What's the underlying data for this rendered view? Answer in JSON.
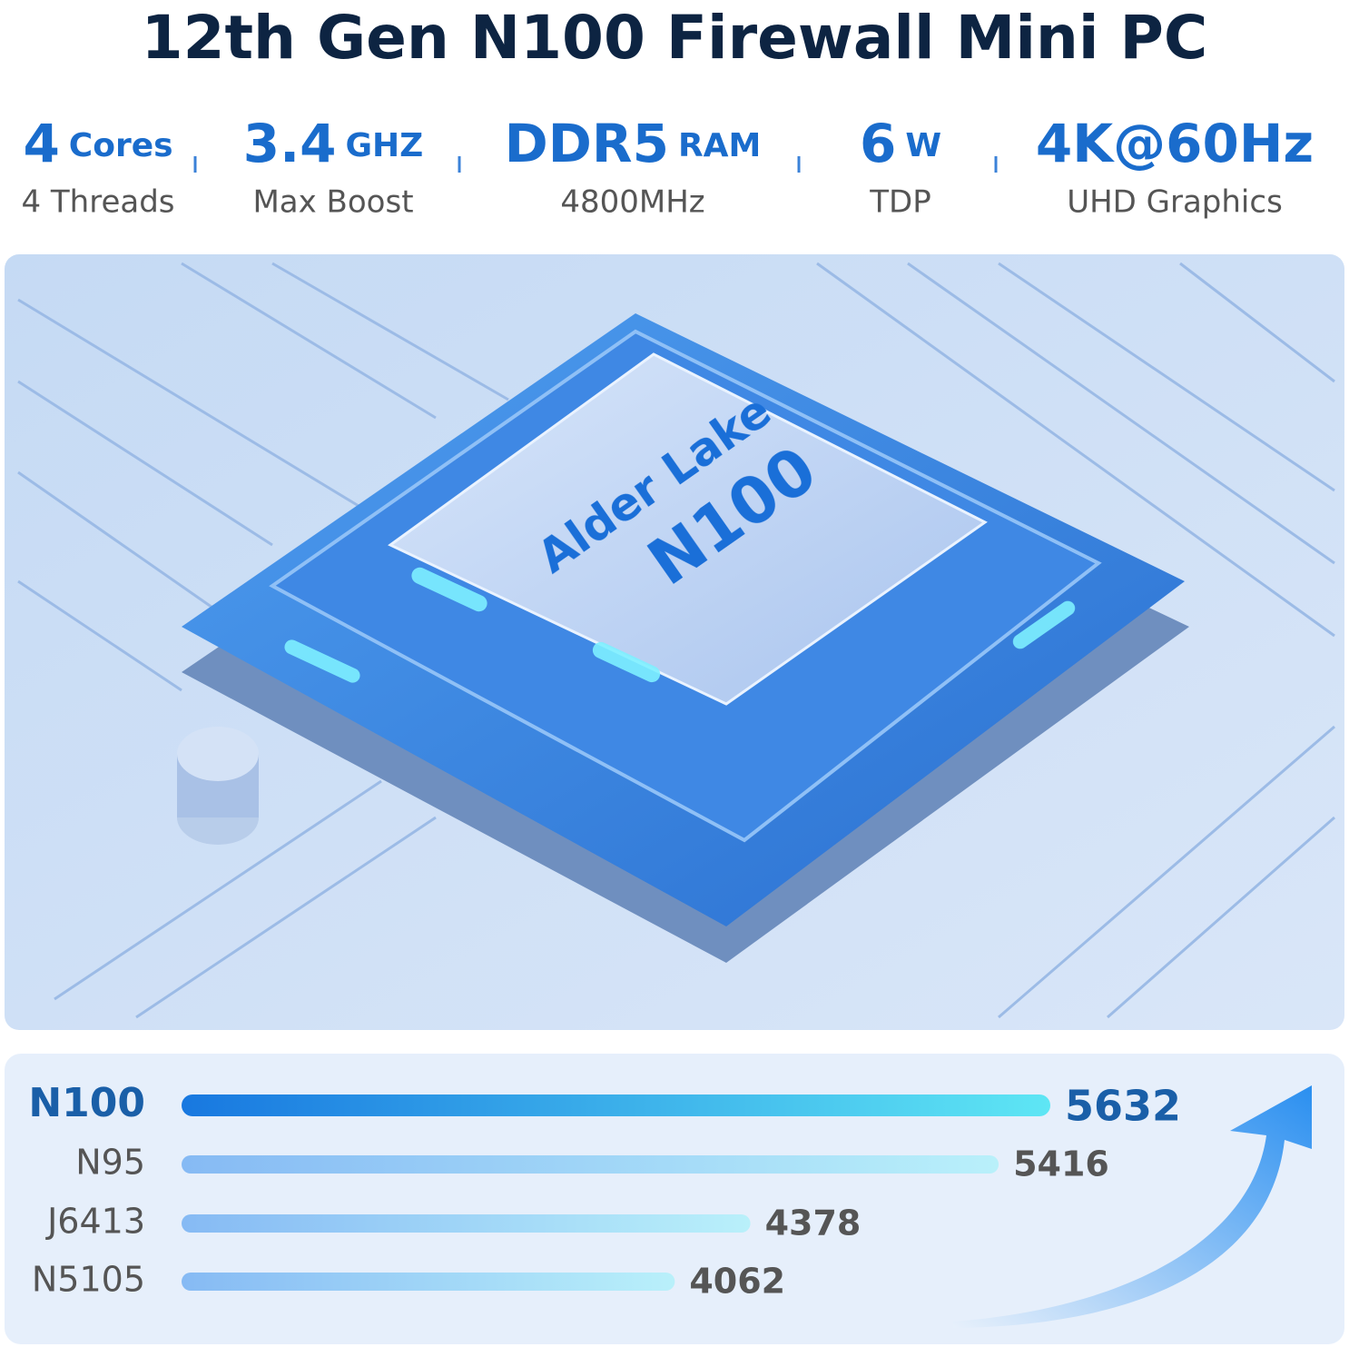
{
  "header": {
    "title": "12th Gen N100 Firewall Mini PC"
  },
  "specs": [
    {
      "value": "4",
      "unit": "Cores",
      "caption": "4 Threads"
    },
    {
      "value": "3.4",
      "unit": "GHZ",
      "caption": "Max Boost"
    },
    {
      "value": "DDR5",
      "unit": "RAM",
      "caption": "4800MHz"
    },
    {
      "value": "6",
      "unit": "W",
      "caption": "TDP"
    },
    {
      "value": "4K@60Hz",
      "caption": "UHD Graphics"
    }
  ],
  "chip": {
    "line1": "Alder Lake",
    "line2": "N100"
  },
  "chart_data": {
    "type": "bar",
    "categories": [
      "N100",
      "N95",
      "J6413",
      "N5105"
    ],
    "values": [
      5632,
      5416,
      4378,
      4062
    ]
  }
}
